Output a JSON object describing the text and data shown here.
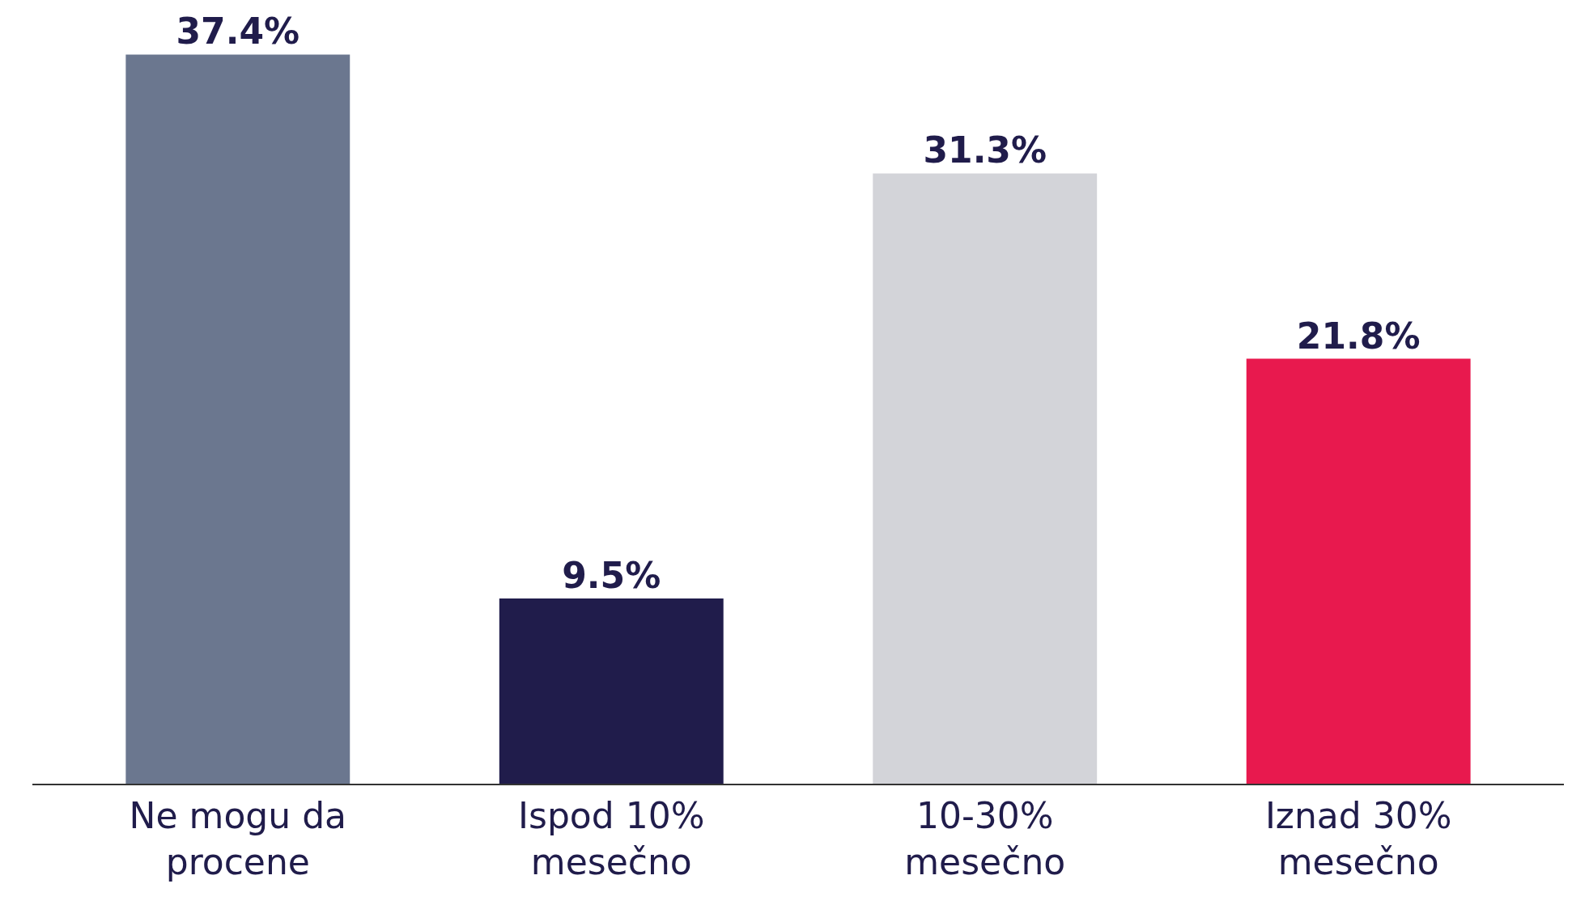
{
  "chart_data": {
    "type": "bar",
    "categories": [
      "Ne mogu da\nprocene",
      "Ispod 10%\nmesečno",
      "10-30%\nmesečno",
      "Iznad 30%\nmesečno"
    ],
    "values": [
      37.4,
      9.5,
      31.3,
      21.8
    ],
    "value_labels": [
      "37.4%",
      "9.5%",
      "31.3%",
      "21.8%"
    ],
    "colors": [
      "#6b778f",
      "#201c4b",
      "#d3d4d9",
      "#e8194e"
    ],
    "tick_labels": "x",
    "legend": false
  }
}
